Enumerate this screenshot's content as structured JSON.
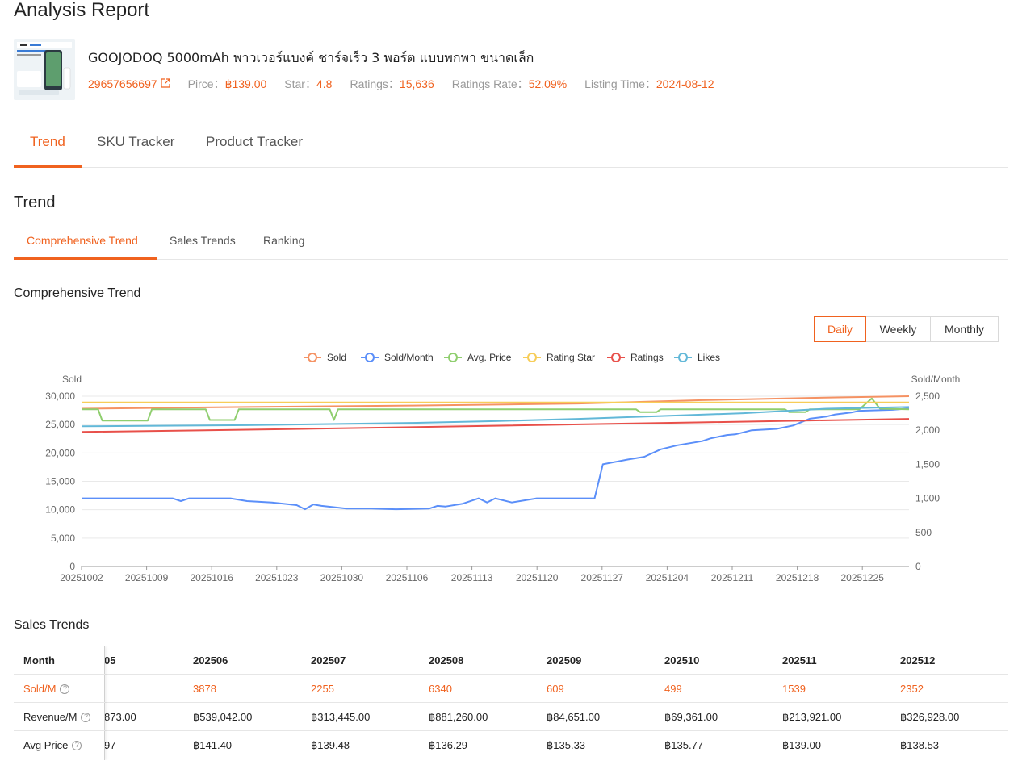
{
  "page": {
    "title": "Analysis Report"
  },
  "product": {
    "name": "GOOJODOQ 5000mAh พาวเวอร์แบงค์ ชาร์จเร็ว 3 พอร์ต แบบพกพา ขนาดเล็ก",
    "id": "29657656697",
    "price_label": "Pirce：",
    "price": "฿139.00",
    "star_label": "Star：",
    "star": "4.8",
    "ratings_label": "Ratings：",
    "ratings": "15,636",
    "rate_label": "Ratings Rate：",
    "rate": "52.09%",
    "listing_label": "Listing Time：",
    "listing": "2024-08-12",
    "external_icon": "external-link-icon"
  },
  "main_tabs": [
    "Trend",
    "SKU Tracker",
    "Product Tracker"
  ],
  "trend_heading": "Trend",
  "sub_tabs": [
    "Comprehensive Trend",
    "Sales Trends",
    "Ranking"
  ],
  "chart_heading": "Comprehensive Trend",
  "period": [
    "Daily",
    "Weekly",
    "Monthly"
  ],
  "colors": {
    "accent": "#f0621f"
  },
  "chart_data": {
    "type": "line",
    "y_left_label": "Sold",
    "y_right_label": "Sold/Month",
    "y_left_ticks": [
      "30,000",
      "25,000",
      "20,000",
      "15,000",
      "10,000",
      "5,000",
      "0"
    ],
    "y_right_ticks": [
      "2,500",
      "2,000",
      "1,500",
      "1,000",
      "500",
      "0"
    ],
    "ylim_left": [
      0,
      30000
    ],
    "ylim_right": [
      0,
      2500
    ],
    "grid": true,
    "legend_position": "top-center",
    "x_ticks": [
      "20251002",
      "20251009",
      "20251016",
      "20251023",
      "20251030",
      "20251106",
      "20251113",
      "20251120",
      "20251127",
      "20251204",
      "20251211",
      "20251218",
      "20251225"
    ],
    "series": [
      {
        "name": "Sold",
        "color": "#f59263",
        "axis": "left",
        "points": [
          [
            0,
            27800
          ],
          [
            20,
            28100
          ],
          [
            40,
            28350
          ],
          [
            60,
            28700
          ],
          [
            75,
            29300
          ],
          [
            88,
            29700
          ],
          [
            100,
            30000
          ]
        ]
      },
      {
        "name": "Sold/Month",
        "color": "#5b8ff9",
        "axis": "right",
        "points": [
          [
            0,
            1000
          ],
          [
            11,
            1000
          ],
          [
            12,
            960
          ],
          [
            13,
            1000
          ],
          [
            18,
            1000
          ],
          [
            20,
            960
          ],
          [
            23,
            940
          ],
          [
            26,
            900
          ],
          [
            27,
            840
          ],
          [
            28,
            910
          ],
          [
            29,
            890
          ],
          [
            32,
            850
          ],
          [
            35,
            850
          ],
          [
            38,
            840
          ],
          [
            42,
            850
          ],
          [
            43,
            890
          ],
          [
            44,
            880
          ],
          [
            46,
            920
          ],
          [
            48,
            1000
          ],
          [
            49,
            940
          ],
          [
            50,
            1000
          ],
          [
            52,
            940
          ],
          [
            55,
            1000
          ],
          [
            62,
            1000
          ],
          [
            63,
            1500
          ],
          [
            66,
            1570
          ],
          [
            68,
            1610
          ],
          [
            70,
            1720
          ],
          [
            72,
            1780
          ],
          [
            75,
            1840
          ],
          [
            76,
            1880
          ],
          [
            78,
            1930
          ],
          [
            79,
            1940
          ],
          [
            81,
            2000
          ],
          [
            84,
            2020
          ],
          [
            86,
            2070
          ],
          [
            88,
            2170
          ],
          [
            90,
            2200
          ],
          [
            91,
            2230
          ],
          [
            93,
            2260
          ],
          [
            94,
            2285
          ],
          [
            98,
            2300
          ],
          [
            100,
            2320
          ]
        ]
      },
      {
        "name": "Avg. Price",
        "color": "#8fce6e",
        "axis": "left",
        "points": [
          [
            0,
            27700
          ],
          [
            2,
            27700
          ],
          [
            2.5,
            25700
          ],
          [
            8,
            25700
          ],
          [
            8.5,
            27700
          ],
          [
            15,
            27700
          ],
          [
            15.5,
            25800
          ],
          [
            18.5,
            25800
          ],
          [
            19,
            27700
          ],
          [
            30,
            27700
          ],
          [
            30.5,
            25800
          ],
          [
            31,
            27700
          ],
          [
            67,
            27700
          ],
          [
            67.5,
            27200
          ],
          [
            69.5,
            27200
          ],
          [
            70,
            27700
          ],
          [
            85,
            27700
          ],
          [
            85.5,
            27200
          ],
          [
            87.5,
            27200
          ],
          [
            88,
            27700
          ],
          [
            94,
            27700
          ],
          [
            95.5,
            29600
          ],
          [
            96.5,
            27800
          ],
          [
            100,
            27700
          ]
        ]
      },
      {
        "name": "Rating Star",
        "color": "#f7cd58",
        "axis": "left",
        "points": [
          [
            0,
            28900
          ],
          [
            100,
            28900
          ]
        ]
      },
      {
        "name": "Ratings",
        "color": "#e8504a",
        "axis": "left",
        "points": [
          [
            0,
            23700
          ],
          [
            25,
            24200
          ],
          [
            50,
            24800
          ],
          [
            75,
            25400
          ],
          [
            100,
            26000
          ]
        ]
      },
      {
        "name": "Likes",
        "color": "#62b8d8",
        "axis": "left",
        "points": [
          [
            0,
            24700
          ],
          [
            20,
            24900
          ],
          [
            40,
            25300
          ],
          [
            50,
            25600
          ],
          [
            60,
            26000
          ],
          [
            70,
            26500
          ],
          [
            80,
            27000
          ],
          [
            90,
            27800
          ],
          [
            100,
            28100
          ]
        ]
      }
    ]
  },
  "sales_heading": "Sales Trends",
  "sales_table": {
    "columns": [
      "Month",
      "05",
      "202506",
      "202507",
      "202508",
      "202509",
      "202510",
      "202511",
      "202512"
    ],
    "rows": [
      {
        "label": "Sold/M",
        "values": [
          "",
          "3878",
          "2255",
          "6340",
          "609",
          "499",
          "1539",
          "2352"
        ]
      },
      {
        "label": "Revenue/M",
        "values": [
          "873.00",
          "฿539,042.00",
          "฿313,445.00",
          "฿881,260.00",
          "฿84,651.00",
          "฿69,361.00",
          "฿213,921.00",
          "฿326,928.00"
        ]
      },
      {
        "label": "Avg Price",
        "values": [
          "97",
          "฿141.40",
          "฿139.48",
          "฿136.29",
          "฿135.33",
          "฿135.77",
          "฿139.00",
          "฿138.53"
        ]
      }
    ]
  }
}
